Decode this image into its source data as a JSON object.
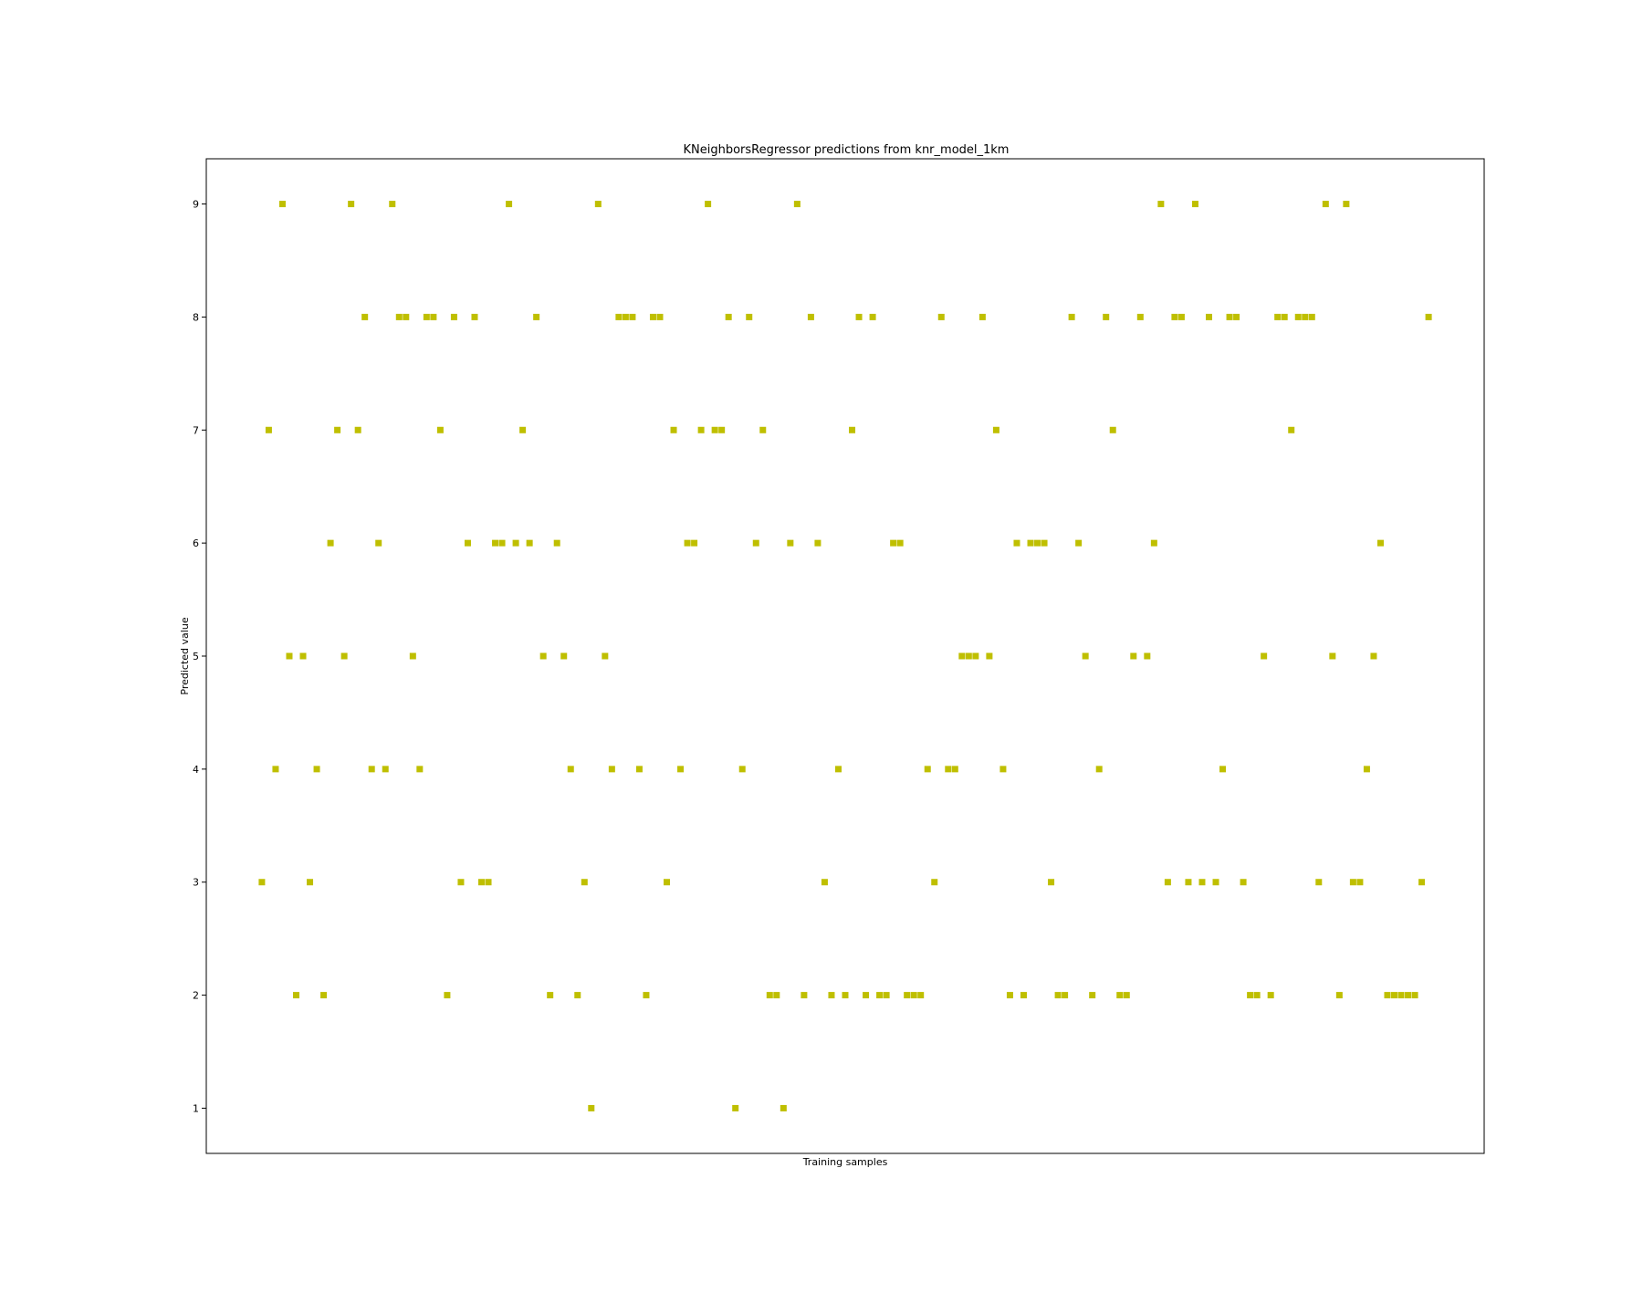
{
  "chart_data": {
    "type": "scatter",
    "title": "KNeighborsRegressor predictions from knr_model_1km",
    "xlabel": "Training samples",
    "ylabel": "Predicted value",
    "x_ticks_visible": false,
    "grid": false,
    "legend": "none",
    "marker": "square",
    "ylim": [
      0.6,
      9.4
    ],
    "xlim": [
      -8.1,
      178.1
    ],
    "y_ticks": [
      1,
      2,
      3,
      4,
      5,
      6,
      7,
      8,
      9
    ],
    "y_tick_labels": [
      "1",
      "2",
      "3",
      "4",
      "5",
      "6",
      "7",
      "8",
      "9"
    ],
    "colors": {
      "marker": "#bfbf00",
      "axes": "#000000",
      "background": "#ffffff"
    },
    "series": [
      {
        "x": [
          0,
          1,
          2,
          3,
          4,
          5,
          6,
          7,
          8,
          9,
          10,
          11,
          12,
          13,
          14,
          15,
          16,
          17,
          18,
          19,
          20,
          21,
          22,
          23,
          24,
          25,
          26,
          27,
          28,
          29,
          30,
          31,
          32,
          33,
          34,
          35,
          36,
          37,
          38,
          39,
          40,
          41,
          42,
          43,
          44,
          45,
          46,
          47,
          48,
          49,
          50,
          51,
          52,
          53,
          54,
          55,
          56,
          57,
          58,
          59,
          60,
          61,
          62,
          63,
          64,
          65,
          66,
          67,
          68,
          69,
          70,
          71,
          72,
          73,
          74,
          75,
          76,
          77,
          78,
          79,
          80,
          81,
          82,
          83,
          84,
          85,
          86,
          87,
          88,
          89,
          90,
          91,
          92,
          93,
          94,
          95,
          96,
          97,
          98,
          99,
          100,
          101,
          102,
          103,
          104,
          105,
          106,
          107,
          108,
          109,
          110,
          111,
          112,
          113,
          114,
          115,
          116,
          117,
          118,
          119,
          120,
          121,
          122,
          123,
          124,
          125,
          126,
          127,
          128,
          129,
          130,
          131,
          132,
          133,
          134,
          135,
          136,
          137,
          138,
          139,
          140,
          141,
          142,
          143,
          144,
          145,
          146,
          147,
          148,
          149,
          150,
          151,
          152,
          153,
          154,
          155,
          156,
          157,
          158,
          159,
          160,
          161,
          162,
          163,
          164,
          165,
          166,
          167,
          168,
          169,
          170
        ],
        "y": [
          3,
          7,
          4,
          9,
          5,
          2,
          5,
          3,
          4,
          2,
          6,
          7,
          5,
          9,
          7,
          8,
          4,
          6,
          4,
          9,
          8,
          8,
          5,
          4,
          8,
          8,
          7,
          2,
          8,
          3,
          6,
          8,
          3,
          3,
          6,
          6,
          9,
          6,
          7,
          6,
          8,
          5,
          2,
          6,
          5,
          4,
          2,
          3,
          1,
          9,
          5,
          4,
          8,
          8,
          8,
          4,
          2,
          8,
          8,
          3,
          7,
          4,
          6,
          6,
          7,
          9,
          7,
          7,
          8,
          1,
          4,
          8,
          6,
          7,
          2,
          2,
          1,
          6,
          9,
          2,
          8,
          6,
          3,
          2,
          4,
          2,
          7,
          8,
          2,
          8,
          2,
          2,
          6,
          6,
          2,
          2,
          2,
          4,
          3,
          8,
          4,
          4,
          5,
          5,
          5,
          8,
          5,
          7,
          4,
          2,
          6,
          2,
          6,
          6,
          6,
          3,
          2,
          2,
          8,
          6,
          5,
          2,
          4,
          8,
          7,
          2,
          2,
          5,
          8,
          5,
          6,
          9,
          3,
          8,
          8,
          3,
          9,
          3,
          8,
          3,
          4,
          8,
          8,
          3,
          2,
          2,
          5,
          2,
          8,
          8,
          7,
          8,
          8,
          8,
          3,
          9,
          5,
          2,
          9,
          3,
          3,
          4,
          5,
          6,
          2,
          2,
          2,
          2,
          2,
          3,
          8
        ]
      }
    ]
  }
}
